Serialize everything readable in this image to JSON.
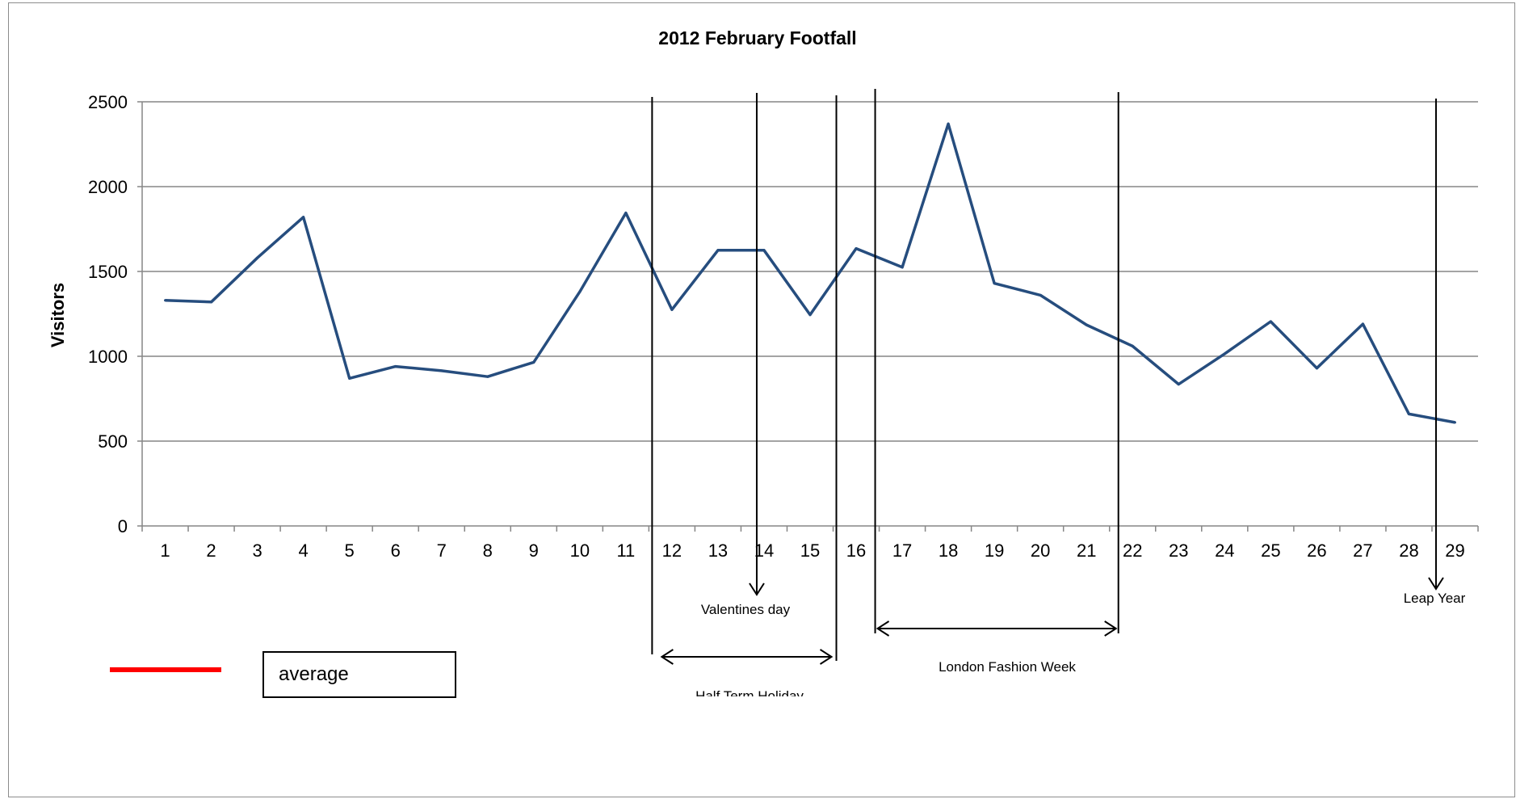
{
  "chart_data": {
    "type": "line",
    "title": "2012 February Footfall",
    "xlabel": "",
    "ylabel": "Visitors",
    "ylim": [
      0,
      2500
    ],
    "yticks": [
      0,
      500,
      1000,
      1500,
      2000,
      2500
    ],
    "categories": [
      "1",
      "2",
      "3",
      "4",
      "5",
      "6",
      "7",
      "8",
      "9",
      "10",
      "11",
      "12",
      "13",
      "14",
      "15",
      "16",
      "17",
      "18",
      "19",
      "20",
      "21",
      "22",
      "23",
      "24",
      "25",
      "26",
      "27",
      "28",
      "29"
    ],
    "series": [
      {
        "color": "#264D7E",
        "values": [
          1330,
          1320,
          1580,
          1820,
          870,
          940,
          915,
          880,
          965,
          1380,
          1845,
          1275,
          1625,
          1625,
          1245,
          1635,
          1525,
          2370,
          1430,
          1360,
          1185,
          1060,
          835,
          1015,
          1205,
          930,
          1190,
          660,
          610
        ]
      }
    ],
    "grid": true,
    "annotations": {
      "valentines": "Valentines day",
      "half_term": "Half Term Holiday",
      "fashion_week": "London Fashion Week",
      "leap_year": "Leap Year"
    },
    "legend": {
      "label": "average",
      "color": "#ff0000",
      "placement": "bottom-left"
    }
  }
}
